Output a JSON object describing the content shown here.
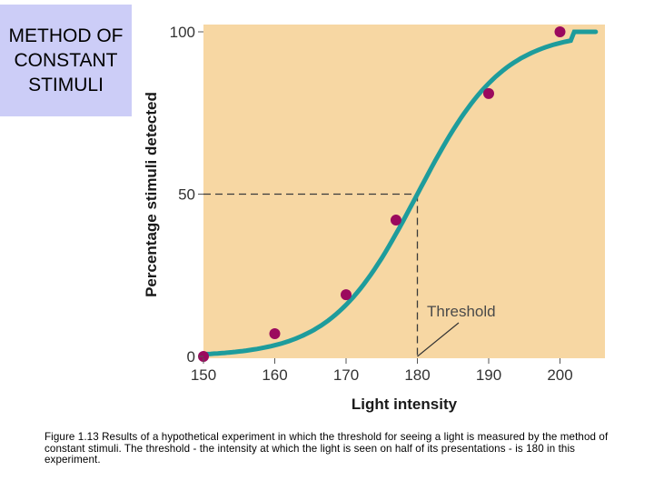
{
  "slide": {
    "title": "METHOD OF CONSTANT STIMULI",
    "caption": "Figure 1.13 Results of a hypothetical experiment in which the threshold for seeing a light is measured by the method of constant stimuli.  The threshold - the intensity at which the light is seen on half of its presentations - is 180 in this experiment."
  },
  "colors": {
    "plot_background": "#f7d7a3",
    "curve": "#1e9c9c",
    "points": "#9b0a5e",
    "title_box": "#cccdf7"
  },
  "chart_data": {
    "type": "scatter",
    "xlabel": "Light intensity",
    "ylabel": "Percentage stimuli detected",
    "xlim": [
      150,
      205
    ],
    "ylim": [
      0,
      100
    ],
    "x_ticks": [
      150,
      160,
      170,
      180,
      190,
      200
    ],
    "y_ticks": [
      0,
      50,
      100
    ],
    "grid": false,
    "points": [
      {
        "x": 150,
        "y": 0
      },
      {
        "x": 160,
        "y": 7
      },
      {
        "x": 170,
        "y": 19
      },
      {
        "x": 177,
        "y": 42
      },
      {
        "x": 190,
        "y": 81
      },
      {
        "x": 200,
        "y": 100
      }
    ],
    "fitted_curve": {
      "type": "sigmoid",
      "midpoint_x": 180,
      "midpoint_y": 50
    },
    "threshold": {
      "x": 180,
      "y": 50,
      "label": "Threshold"
    }
  }
}
